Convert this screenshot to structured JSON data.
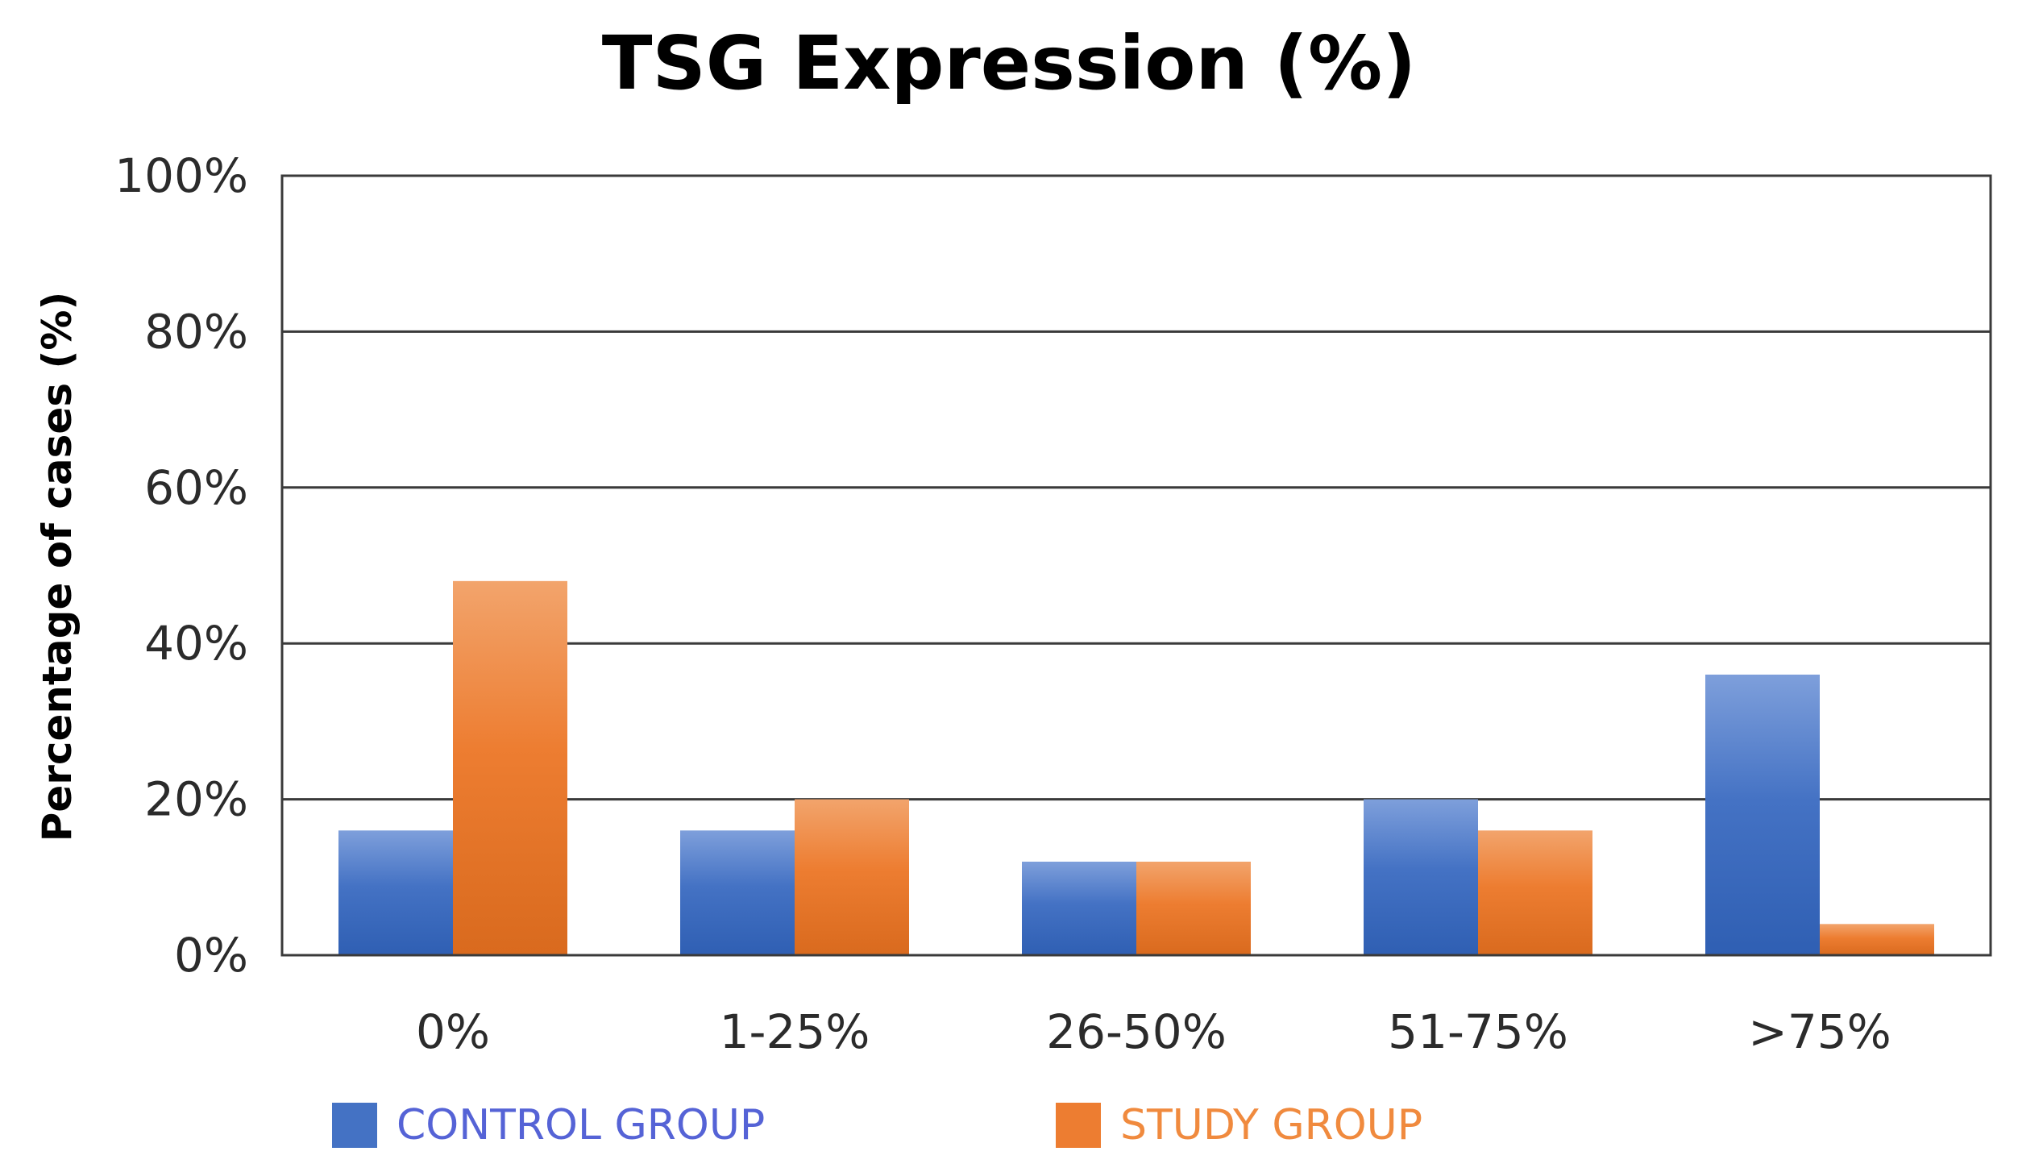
{
  "chart_data": {
    "type": "bar",
    "title": "TSG Expression (%)",
    "xlabel": "",
    "ylabel": "Percentage of cases (%)",
    "categories": [
      "0%",
      "1-25%",
      "26-50%",
      "51-75%",
      ">75%"
    ],
    "series": [
      {
        "name": "CONTROL GROUP",
        "values": [
          16,
          16,
          12,
          20,
          36
        ],
        "color": "#4472C4",
        "legend_text_color": "#5563D6"
      },
      {
        "name": "STUDY GROUP",
        "values": [
          48,
          20,
          12,
          16,
          4
        ],
        "color": "#ED7D31",
        "legend_text_color": "#F08A3E"
      }
    ],
    "ylim": [
      0,
      100
    ],
    "yticks": [
      "0%",
      "20%",
      "40%",
      "60%",
      "80%",
      "100%"
    ],
    "ytick_values": [
      0,
      20,
      40,
      60,
      80,
      100
    ],
    "grid": true,
    "legend_position": "bottom"
  }
}
